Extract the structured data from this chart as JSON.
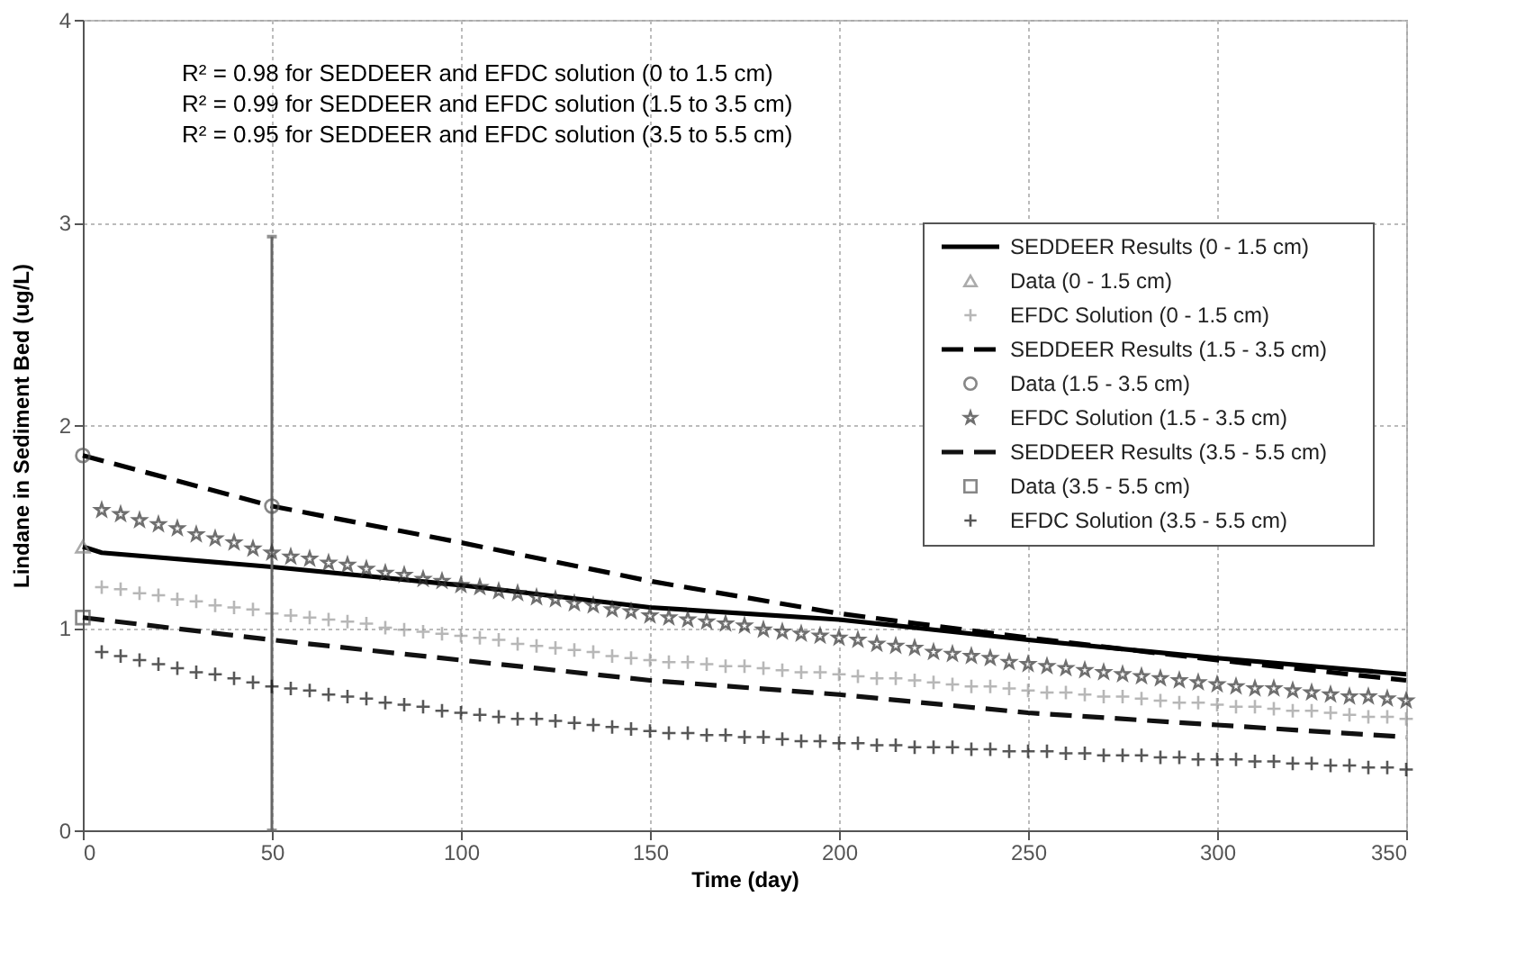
{
  "chart_data": {
    "type": "line",
    "xlabel": "Time (day)",
    "ylabel": "Lindane in Sediment Bed (ug/L)",
    "xlim": [
      0,
      350
    ],
    "ylim": [
      0,
      4
    ],
    "xticks": [
      0,
      50,
      100,
      150,
      200,
      250,
      300,
      350
    ],
    "yticks": [
      0,
      1,
      2,
      3,
      4
    ],
    "grid": true,
    "legend": "right",
    "annotations": [
      "R² = 0.98 for SEDDEER and EFDC solution (0 to 1.5 cm)",
      "R² = 0.99 for SEDDEER and EFDC solution (1.5 to 3.5 cm)",
      "R² = 0.95 for SEDDEER and EFDC solution (3.5 to 5.5 cm)"
    ],
    "x": [
      5,
      10,
      15,
      20,
      25,
      30,
      35,
      40,
      45,
      50,
      55,
      60,
      65,
      70,
      75,
      80,
      85,
      90,
      95,
      100,
      105,
      110,
      115,
      120,
      125,
      130,
      135,
      140,
      145,
      150,
      155,
      160,
      165,
      170,
      175,
      180,
      185,
      190,
      195,
      200,
      205,
      210,
      215,
      220,
      225,
      230,
      235,
      240,
      245,
      250,
      255,
      260,
      265,
      270,
      275,
      280,
      285,
      290,
      295,
      300,
      305,
      310,
      315,
      320,
      325,
      330,
      335,
      340,
      345,
      350
    ],
    "series": [
      {
        "name": "SEDDEER Results (0 - 1.5 cm)",
        "line_style": "solid",
        "marker": "none",
        "color": "#000000",
        "x": [
          0,
          5,
          50,
          100,
          150,
          200,
          250,
          300,
          350
        ],
        "values": [
          1.4,
          1.37,
          1.3,
          1.21,
          1.1,
          1.04,
          0.94,
          0.85,
          0.77
        ]
      },
      {
        "name": "Data (0 - 1.5 cm)",
        "type": "scatter",
        "marker": "triangle",
        "color": "#888888",
        "x": [
          0
        ],
        "values": [
          1.4
        ]
      },
      {
        "name": "EFDC Solution (0 - 1.5 cm)",
        "type": "scatter",
        "marker": "cross",
        "color": "#999999",
        "values": [
          1.2,
          1.19,
          1.17,
          1.16,
          1.14,
          1.13,
          1.11,
          1.1,
          1.09,
          1.07,
          1.06,
          1.05,
          1.04,
          1.03,
          1.02,
          1.0,
          0.99,
          0.98,
          0.97,
          0.96,
          0.95,
          0.94,
          0.92,
          0.91,
          0.9,
          0.89,
          0.88,
          0.86,
          0.85,
          0.84,
          0.83,
          0.83,
          0.82,
          0.81,
          0.81,
          0.8,
          0.79,
          0.78,
          0.78,
          0.77,
          0.76,
          0.75,
          0.75,
          0.74,
          0.73,
          0.72,
          0.71,
          0.71,
          0.7,
          0.69,
          0.68,
          0.68,
          0.67,
          0.66,
          0.66,
          0.65,
          0.64,
          0.63,
          0.63,
          0.62,
          0.61,
          0.61,
          0.6,
          0.59,
          0.59,
          0.58,
          0.57,
          0.56,
          0.56,
          0.55
        ]
      },
      {
        "name": "SEDDEER Results (1.5 - 3.5 cm)",
        "line_style": "dashed",
        "marker": "none",
        "color": "#000000",
        "x": [
          0,
          50,
          100,
          150,
          200,
          250,
          300,
          350
        ],
        "values": [
          1.85,
          1.6,
          1.42,
          1.23,
          1.07,
          0.95,
          0.84,
          0.74
        ]
      },
      {
        "name": "Data (1.5 - 3.5 cm)",
        "type": "scatter",
        "marker": "circle",
        "color": "#555555",
        "x": [
          0,
          50
        ],
        "values": [
          1.85,
          1.6
        ],
        "errors": [
          null,
          [
            0,
            2.93
          ]
        ]
      },
      {
        "name": "EFDC Solution (1.5 - 3.5 cm)",
        "type": "scatter",
        "marker": "star",
        "color": "#333333",
        "values": [
          1.58,
          1.56,
          1.53,
          1.51,
          1.49,
          1.46,
          1.44,
          1.42,
          1.39,
          1.37,
          1.35,
          1.34,
          1.32,
          1.31,
          1.29,
          1.27,
          1.26,
          1.24,
          1.23,
          1.21,
          1.2,
          1.18,
          1.17,
          1.15,
          1.14,
          1.12,
          1.11,
          1.09,
          1.08,
          1.06,
          1.05,
          1.04,
          1.03,
          1.02,
          1.01,
          0.99,
          0.98,
          0.97,
          0.96,
          0.95,
          0.94,
          0.92,
          0.91,
          0.9,
          0.88,
          0.87,
          0.86,
          0.85,
          0.83,
          0.82,
          0.81,
          0.8,
          0.79,
          0.78,
          0.77,
          0.76,
          0.75,
          0.74,
          0.73,
          0.72,
          0.71,
          0.7,
          0.7,
          0.69,
          0.68,
          0.67,
          0.66,
          0.66,
          0.65,
          0.64
        ]
      },
      {
        "name": "SEDDEER Results (3.5 - 5.5 cm)",
        "line_style": "dashed",
        "marker": "none",
        "color": "#111111",
        "x": [
          0,
          50,
          100,
          150,
          200,
          250,
          300,
          350
        ],
        "values": [
          1.05,
          0.94,
          0.84,
          0.74,
          0.67,
          0.58,
          0.52,
          0.46
        ]
      },
      {
        "name": "Data (3.5 - 5.5 cm)",
        "type": "scatter",
        "marker": "square",
        "color": "#555555",
        "x": [
          0
        ],
        "values": [
          1.05
        ]
      },
      {
        "name": "EFDC Solution (3.5 - 5.5 cm)",
        "type": "scatter",
        "marker": "cross",
        "color": "#111111",
        "values": [
          0.88,
          0.86,
          0.84,
          0.82,
          0.8,
          0.78,
          0.77,
          0.75,
          0.73,
          0.71,
          0.7,
          0.69,
          0.67,
          0.66,
          0.65,
          0.63,
          0.62,
          0.61,
          0.59,
          0.58,
          0.57,
          0.56,
          0.55,
          0.55,
          0.54,
          0.53,
          0.52,
          0.51,
          0.5,
          0.49,
          0.48,
          0.48,
          0.47,
          0.47,
          0.46,
          0.46,
          0.45,
          0.44,
          0.44,
          0.43,
          0.43,
          0.42,
          0.42,
          0.41,
          0.41,
          0.41,
          0.4,
          0.4,
          0.39,
          0.39,
          0.39,
          0.38,
          0.38,
          0.37,
          0.37,
          0.37,
          0.36,
          0.36,
          0.35,
          0.35,
          0.35,
          0.34,
          0.34,
          0.33,
          0.33,
          0.32,
          0.32,
          0.31,
          0.31,
          0.3
        ]
      }
    ]
  }
}
